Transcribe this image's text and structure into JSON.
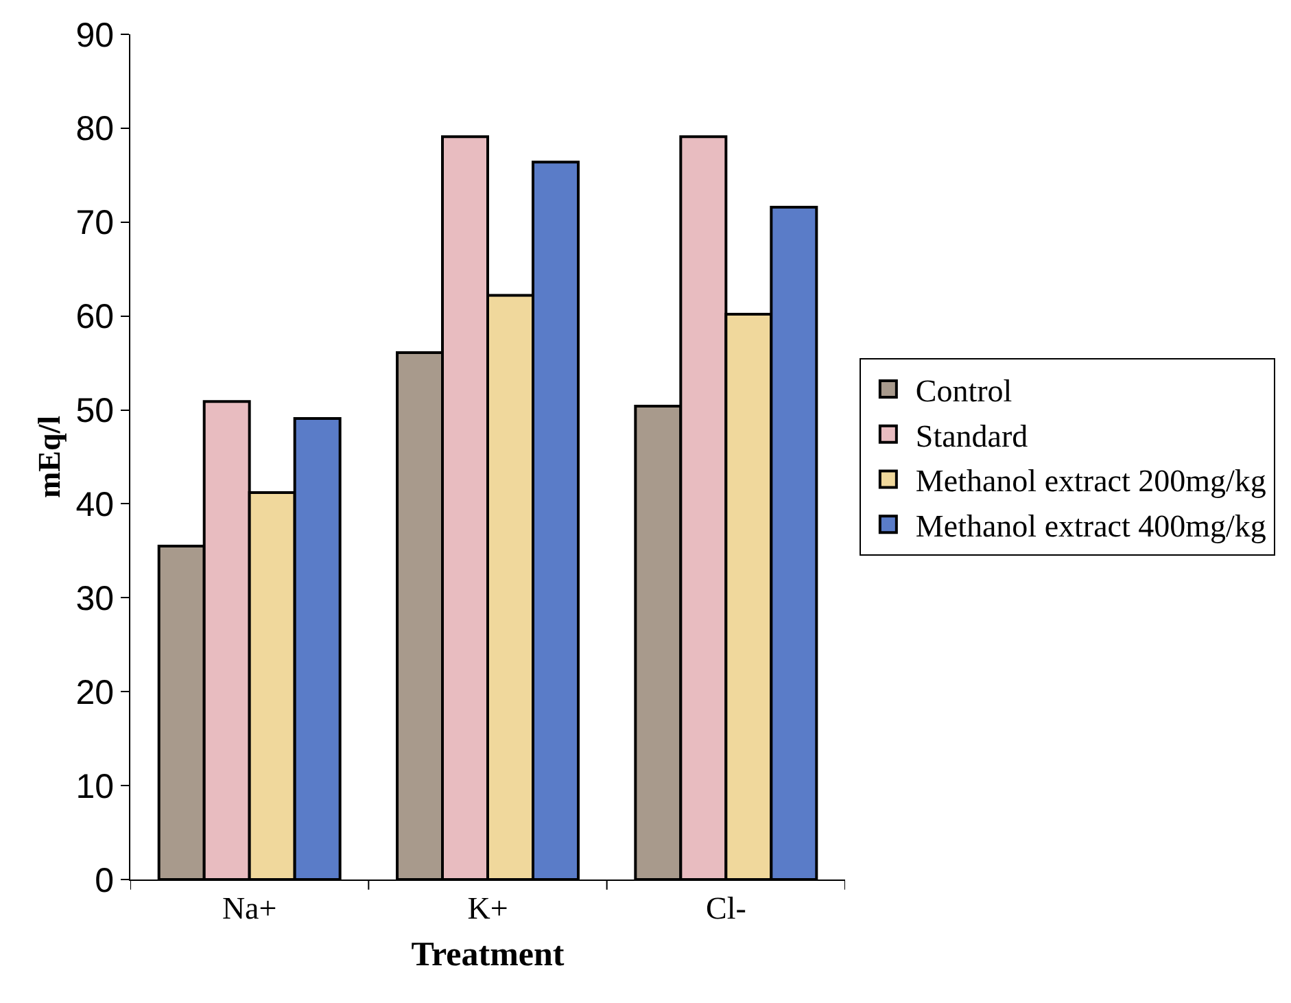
{
  "chart_data": {
    "type": "bar",
    "xlabel": "Treatment",
    "ylabel": "mEq/l",
    "categories": [
      "Na+",
      "K+",
      "Cl-"
    ],
    "series": [
      {
        "name": "Control",
        "color": "#a89a8c",
        "values": [
          35.5,
          56.1,
          50.4
        ]
      },
      {
        "name": "Standard",
        "color": "#e8bcc0",
        "values": [
          50.9,
          79.1,
          79.1
        ]
      },
      {
        "name": "Methanol extract 200mg/kg",
        "color": "#f0d89c",
        "values": [
          41.2,
          62.2,
          60.2
        ]
      },
      {
        "name": "Methanol extract 400mg/kg",
        "color": "#5a7cc8",
        "values": [
          49.1,
          76.4,
          71.6
        ]
      }
    ],
    "ylim": [
      0,
      90
    ],
    "yticks": [
      0,
      10,
      20,
      30,
      40,
      50,
      60,
      70,
      80,
      90
    ],
    "grid": false,
    "legend": "right"
  }
}
